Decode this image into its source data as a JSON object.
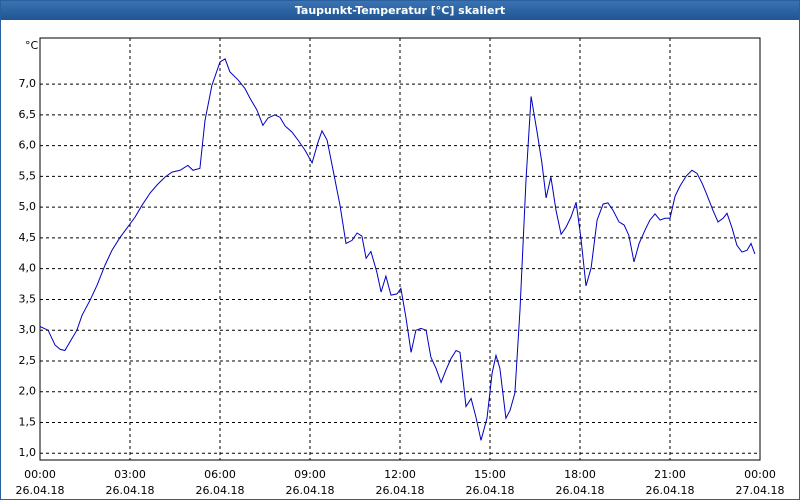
{
  "chart_data": {
    "type": "line",
    "title": "Taupunkt-Temperatur [°C] skaliert",
    "y_label": "°C",
    "color": "#0000c0",
    "grid": true,
    "xlim": [
      0,
      24
    ],
    "ylim": [
      0.89,
      7.75
    ],
    "xticks": [
      {
        "value": 0,
        "label": "00:00",
        "date": "26.04.18"
      },
      {
        "value": 3,
        "label": "03:00",
        "date": "26.04.18"
      },
      {
        "value": 6,
        "label": "06:00",
        "date": "26.04.18"
      },
      {
        "value": 9,
        "label": "09:00",
        "date": "26.04.18"
      },
      {
        "value": 12,
        "label": "12:00",
        "date": "26.04.18"
      },
      {
        "value": 15,
        "label": "15:00",
        "date": "26.04.18"
      },
      {
        "value": 18,
        "label": "18:00",
        "date": "26.04.18"
      },
      {
        "value": 21,
        "label": "21:00",
        "date": "26.04.18"
      },
      {
        "value": 24,
        "label": "00:00",
        "date": "27.04.18"
      }
    ],
    "yticks": [
      {
        "value": 1,
        "label": "1,0"
      },
      {
        "value": 1.5,
        "label": "1,5"
      },
      {
        "value": 2,
        "label": "2,0"
      },
      {
        "value": 2.5,
        "label": "2,5"
      },
      {
        "value": 3,
        "label": "3,0"
      },
      {
        "value": 3.5,
        "label": "3,5"
      },
      {
        "value": 4,
        "label": "4,0"
      },
      {
        "value": 4.5,
        "label": "4,5"
      },
      {
        "value": 5,
        "label": "5,0"
      },
      {
        "value": 5.5,
        "label": "5,5"
      },
      {
        "value": 6,
        "label": "6,0"
      },
      {
        "value": 6.5,
        "label": "6,5"
      },
      {
        "value": 7,
        "label": "7,0"
      }
    ],
    "x": [
      0,
      0.27,
      0.5,
      0.67,
      0.83,
      1.07,
      1.23,
      1.4,
      1.67,
      1.9,
      2.17,
      2.4,
      2.67,
      2.9,
      3.17,
      3.4,
      3.67,
      3.9,
      4.17,
      4.4,
      4.67,
      4.93,
      5.1,
      5.33,
      5.5,
      5.73,
      6,
      6.17,
      6.33,
      6.6,
      6.83,
      7,
      7.23,
      7.43,
      7.6,
      7.83,
      8,
      8.17,
      8.4,
      8.6,
      8.83,
      9.07,
      9.27,
      9.4,
      9.57,
      9.77,
      10,
      10.2,
      10.4,
      10.57,
      10.73,
      10.87,
      11.03,
      11.23,
      11.37,
      11.53,
      11.7,
      11.9,
      12.03,
      12.2,
      12.37,
      12.53,
      12.7,
      12.87,
      13.03,
      13.2,
      13.37,
      13.53,
      13.7,
      13.87,
      14,
      14.2,
      14.37,
      14.53,
      14.7,
      14.9,
      15.07,
      15.2,
      15.33,
      15.53,
      15.67,
      15.83,
      16,
      16.2,
      16.37,
      16.57,
      16.73,
      16.87,
      17.03,
      17.2,
      17.37,
      17.53,
      17.7,
      17.87,
      18.03,
      18.2,
      18.37,
      18.57,
      18.77,
      18.93,
      19.1,
      19.3,
      19.47,
      19.63,
      19.8,
      19.97,
      20.17,
      20.33,
      20.5,
      20.67,
      20.83,
      21,
      21.17,
      21.33,
      21.53,
      21.73,
      21.9,
      22.07,
      22.23,
      22.43,
      22.6,
      22.77,
      22.9,
      23.07,
      23.23,
      23.4,
      23.57,
      23.7,
      23.83
    ],
    "values": [
      3.06,
      3.0,
      2.76,
      2.69,
      2.67,
      2.87,
      3.0,
      3.24,
      3.49,
      3.73,
      4.06,
      4.3,
      4.51,
      4.66,
      4.84,
      5.03,
      5.23,
      5.36,
      5.49,
      5.57,
      5.6,
      5.68,
      5.6,
      5.63,
      6.41,
      6.98,
      7.36,
      7.41,
      7.2,
      7.07,
      6.93,
      6.77,
      6.58,
      6.33,
      6.45,
      6.5,
      6.46,
      6.32,
      6.22,
      6.09,
      5.93,
      5.72,
      6.06,
      6.24,
      6.09,
      5.6,
      5.03,
      4.41,
      4.46,
      4.58,
      4.53,
      4.17,
      4.28,
      3.94,
      3.62,
      3.88,
      3.57,
      3.59,
      3.68,
      3.2,
      2.64,
      3.0,
      3.03,
      3.0,
      2.56,
      2.38,
      2.15,
      2.35,
      2.54,
      2.67,
      2.64,
      1.76,
      1.89,
      1.59,
      1.21,
      1.57,
      2.3,
      2.59,
      2.38,
      1.57,
      1.7,
      1.98,
      3.33,
      5.44,
      6.8,
      6.22,
      5.72,
      5.15,
      5.49,
      4.95,
      4.56,
      4.67,
      4.84,
      5.08,
      4.5,
      3.72,
      4.01,
      4.79,
      5.05,
      5.07,
      4.95,
      4.76,
      4.71,
      4.54,
      4.11,
      4.41,
      4.63,
      4.79,
      4.89,
      4.79,
      4.82,
      4.82,
      5.18,
      5.34,
      5.5,
      5.6,
      5.55,
      5.39,
      5.2,
      4.95,
      4.76,
      4.82,
      4.9,
      4.66,
      4.38,
      4.27,
      4.3,
      4.41,
      4.24
    ]
  }
}
